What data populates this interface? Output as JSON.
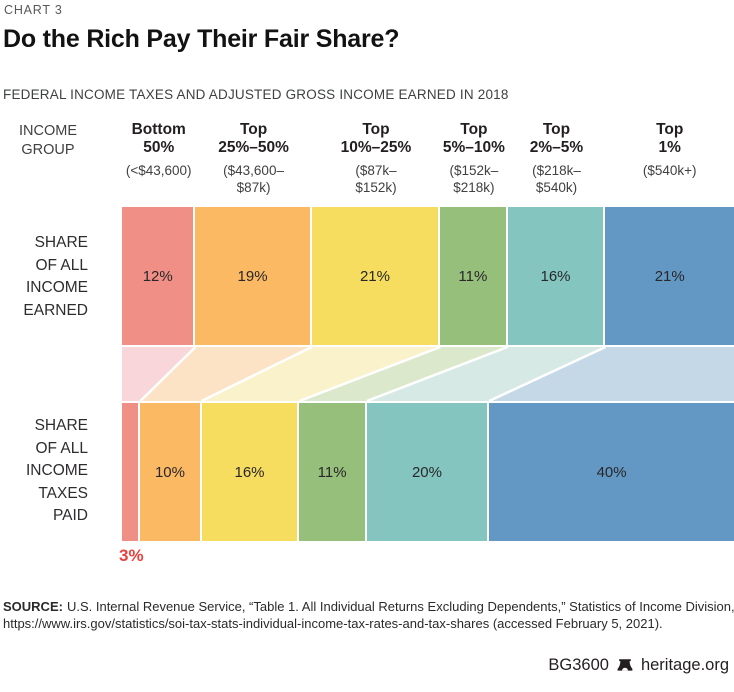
{
  "header": {
    "kicker": "CHART 3",
    "title": "Do the Rich Pay Their Fair Share?",
    "subtitle": "FEDERAL INCOME TAXES AND ADJUSTED GROSS INCOME EARNED IN 2018"
  },
  "chart_data": {
    "type": "bar",
    "variant": "two 100% proportional stacked horizontal bars linked by a flow band",
    "row_axis_label": "INCOME\nGROUP",
    "categories": [
      "Bottom 50%",
      "Top 25%–50%",
      "Top 10%–25%",
      "Top 5%–10%",
      "Top 2%–5%",
      "Top 1%"
    ],
    "series": [
      {
        "name": "Share of All Income Earned",
        "values": [
          12,
          19,
          21,
          11,
          16,
          21
        ]
      },
      {
        "name": "Share of All Income Taxes Paid",
        "values": [
          3,
          10,
          16,
          11,
          20,
          40
        ]
      }
    ],
    "groups": [
      {
        "label": "Bottom\n50%",
        "range": "(<$43,600)",
        "income_share": 12,
        "tax_share": 3,
        "color": "#EF8F85",
        "light_color": "#F8D6D9"
      },
      {
        "label": "Top\n25%–50%",
        "range": "($43,600–\n$87k)",
        "income_share": 19,
        "tax_share": 10,
        "color": "#FBB964",
        "light_color": "#FDE3C5"
      },
      {
        "label": "Top\n10%–25%",
        "range": "($87k–\n$152k)",
        "income_share": 21,
        "tax_share": 16,
        "color": "#F6DC5F",
        "light_color": "#FAF2CA"
      },
      {
        "label": "Top\n5%–10%",
        "range": "($152k–\n$218k)",
        "income_share": 11,
        "tax_share": 11,
        "color": "#96BF7C",
        "light_color": "#DCE8CB"
      },
      {
        "label": "Top\n2%–5%",
        "range": "($218k–\n$540k)",
        "income_share": 16,
        "tax_share": 20,
        "color": "#84C5BF",
        "light_color": "#D6E9E4"
      },
      {
        "label": "Top\n1%",
        "range": "($540k+)",
        "income_share": 21,
        "tax_share": 40,
        "color": "#6298C3",
        "light_color": "#C4D8E8"
      }
    ],
    "rows": [
      {
        "label": "SHARE\nOF ALL\nINCOME\nEARNED"
      },
      {
        "label": "SHARE\nOF ALL\nINCOME\nTAXES\nPAID"
      }
    ],
    "outside_label": {
      "text": "3%",
      "color": "#E8413E"
    }
  },
  "source": {
    "label": "SOURCE:",
    "text": "U.S. Internal Revenue Service, “Table 1. All Individual Returns Excluding Dependents,” Statistics of Income Division,\nhttps://www.irs.gov/statistics/soi-tax-stats-individual-income-tax-rates-and-tax-shares (accessed February 5, 2021)."
  },
  "footer": {
    "id": "BG3600",
    "site": "heritage.org"
  }
}
